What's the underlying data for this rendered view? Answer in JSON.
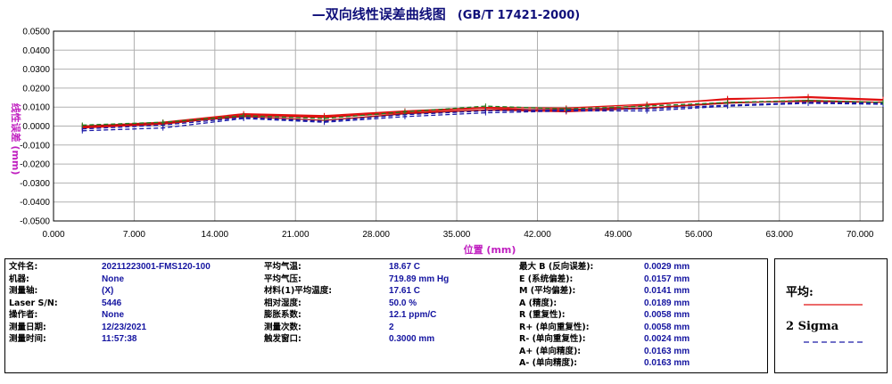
{
  "chart_data": {
    "type": "line",
    "title": "—双向线性误差曲线图",
    "subtitle": "(GB/T 17421-2000)",
    "xlabel": "位置 (mm)",
    "ylabel": "线性误差 (mm)",
    "xlim": [
      0,
      72
    ],
    "ylim": [
      -0.05,
      0.05
    ],
    "x_ticks": [
      "0.000",
      "7.000",
      "14.000",
      "21.000",
      "28.000",
      "35.000",
      "42.000",
      "49.000",
      "56.000",
      "63.000",
      "70.000"
    ],
    "y_ticks": [
      "0.0500",
      "0.0400",
      "0.0300",
      "0.0200",
      "0.0100",
      "0.0000",
      "-0.0100",
      "-0.0200",
      "-0.0300",
      "-0.0400",
      "-0.0500"
    ],
    "grid": true,
    "x": [
      2.5,
      9.5,
      16.5,
      23.5,
      30.5,
      37.5,
      44.5,
      51.5,
      58.5,
      65.5,
      72.0
    ],
    "series": [
      {
        "name": "平均",
        "style": "solid",
        "color": "#e01010",
        "values": [
          -0.0005,
          0.0015,
          0.006,
          0.005,
          0.0075,
          0.0095,
          0.008,
          0.011,
          0.0145,
          0.015,
          0.0135
        ]
      },
      {
        "name": "",
        "style": "solid",
        "color": "#e01010",
        "values": [
          0.0,
          0.002,
          0.0065,
          0.0055,
          0.008,
          0.0098,
          0.0095,
          0.0115,
          0.014,
          0.0155,
          0.014
        ]
      },
      {
        "name": "",
        "style": "solid",
        "color": "#e01010",
        "values": [
          -0.001,
          0.001,
          0.0055,
          0.0045,
          0.007,
          0.0085,
          0.0075,
          0.0095,
          0.0125,
          0.013,
          0.0125
        ]
      },
      {
        "name": "",
        "style": "solid",
        "color": "#b01010",
        "values": [
          0.0,
          0.0015,
          0.005,
          0.003,
          0.0065,
          0.0085,
          0.0088,
          0.0095,
          0.012,
          0.0135,
          0.0125
        ]
      },
      {
        "name": "2 Sigma",
        "style": "dashed",
        "color": "#1a1aa8",
        "values": [
          -0.0025,
          -0.001,
          0.004,
          0.002,
          0.005,
          0.007,
          0.008,
          0.008,
          0.0105,
          0.012,
          0.0115
        ]
      },
      {
        "name": "",
        "style": "dashed",
        "color": "#1a1aa8",
        "values": [
          -0.0015,
          0.0005,
          0.0045,
          0.0025,
          0.006,
          0.008,
          0.0085,
          0.009,
          0.011,
          0.0125,
          0.012
        ]
      },
      {
        "name": "",
        "style": "dashed",
        "color": "#208020",
        "values": [
          0.0005,
          0.002,
          0.0055,
          0.004,
          0.0075,
          0.0105,
          0.009,
          0.0105,
          0.0125,
          0.0135,
          0.0125
        ]
      }
    ]
  },
  "info": {
    "left": [
      {
        "label": "文件名:",
        "value": "20211223001-FMS120-100"
      },
      {
        "label": "机器:",
        "value": "None"
      },
      {
        "label": "测量轴:",
        "value": "(X)"
      },
      {
        "label": "Laser S/N:",
        "value": "5446"
      },
      {
        "label": "操作者:",
        "value": "None"
      },
      {
        "label": "测量日期:",
        "value": "12/23/2021"
      },
      {
        "label": "测量时间:",
        "value": "11:57:38"
      }
    ],
    "middle": [
      {
        "label": "平均气温:",
        "value": "18.67 C"
      },
      {
        "label": "平均气压:",
        "value": "719.89 mm Hg"
      },
      {
        "label": "材料(1)平均温度:",
        "value": "17.61 C"
      },
      {
        "label": "相对湿度:",
        "value": "50.0 %"
      },
      {
        "label": "膨胀系数:",
        "value": "12.1 ppm/C"
      },
      {
        "label": "测量次数:",
        "value": "2"
      },
      {
        "label": "触发窗口:",
        "value": "0.3000 mm"
      }
    ],
    "right": [
      {
        "label": "最大 B (反向误差):",
        "value": "0.0029 mm"
      },
      {
        "label": "E (系统偏差):",
        "value": "0.0157 mm"
      },
      {
        "label": "M (平均偏差):",
        "value": "0.0141 mm"
      },
      {
        "label": "A (精度):",
        "value": "0.0189 mm"
      },
      {
        "label": "R (重复性):",
        "value": "0.0058 mm"
      },
      {
        "label": "R+ (单向重复性):",
        "value": "0.0058 mm"
      },
      {
        "label": "R- (单向重复性):",
        "value": "0.0024 mm"
      },
      {
        "label": "A+ (单向精度):",
        "value": "0.0163 mm"
      },
      {
        "label": "A- (单向精度):",
        "value": "0.0163 mm"
      }
    ]
  },
  "legend": {
    "mean_label": "平均:",
    "sigma_label": "2 Sigma",
    "mean_color": "#e01010",
    "sigma_color": "#1a1aa8"
  }
}
